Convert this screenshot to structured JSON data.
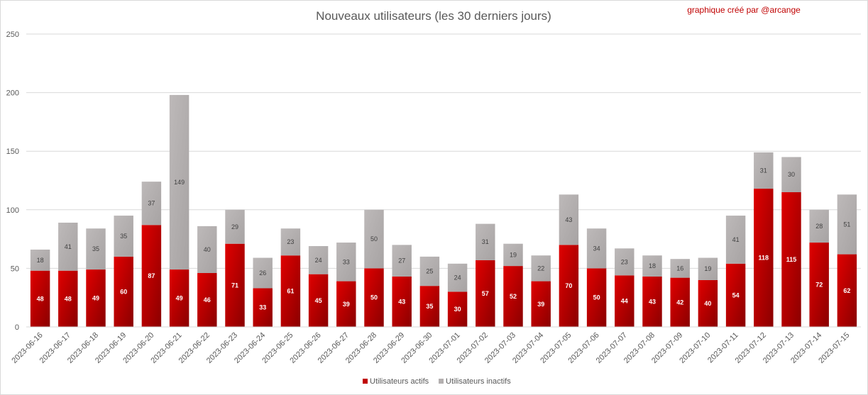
{
  "chart_data": {
    "type": "bar",
    "stacked": true,
    "title": "Nouveaux utilisateurs  (les 30 derniers  jours)",
    "annotation": "graphique créé par @arcange",
    "ylim": [
      0,
      250
    ],
    "yticks": [
      0,
      50,
      100,
      150,
      200,
      250
    ],
    "grid": true,
    "legend_position": "bottom",
    "categories": [
      "2023-06-16",
      "2023-06-17",
      "2023-06-18",
      "2023-06-19",
      "2023-06-20",
      "2023-06-21",
      "2023-06-22",
      "2023-06-23",
      "2023-06-24",
      "2023-06-25",
      "2023-06-26",
      "2023-06-27",
      "2023-06-28",
      "2023-06-29",
      "2023-06-30",
      "2023-07-01",
      "2023-07-02",
      "2023-07-03",
      "2023-07-04",
      "2023-07-05",
      "2023-07-06",
      "2023-07-07",
      "2023-07-08",
      "2023-07-09",
      "2023-07-10",
      "2023-07-11",
      "2023-07-12",
      "2023-07-13",
      "2023-07-14",
      "2023-07-15"
    ],
    "series": [
      {
        "name": "Utilisateurs actifs",
        "color": "#c00000",
        "values": [
          48,
          48,
          49,
          60,
          87,
          49,
          46,
          71,
          33,
          61,
          45,
          39,
          50,
          43,
          35,
          30,
          57,
          52,
          39,
          70,
          50,
          44,
          43,
          42,
          40,
          54,
          118,
          115,
          72,
          62
        ]
      },
      {
        "name": "Utilisateurs inactifs",
        "color": "#b4b0b0",
        "values": [
          18,
          41,
          35,
          35,
          37,
          149,
          40,
          29,
          26,
          23,
          24,
          33,
          50,
          27,
          25,
          24,
          31,
          19,
          22,
          43,
          34,
          23,
          18,
          16,
          19,
          41,
          31,
          30,
          28,
          51
        ]
      }
    ]
  }
}
